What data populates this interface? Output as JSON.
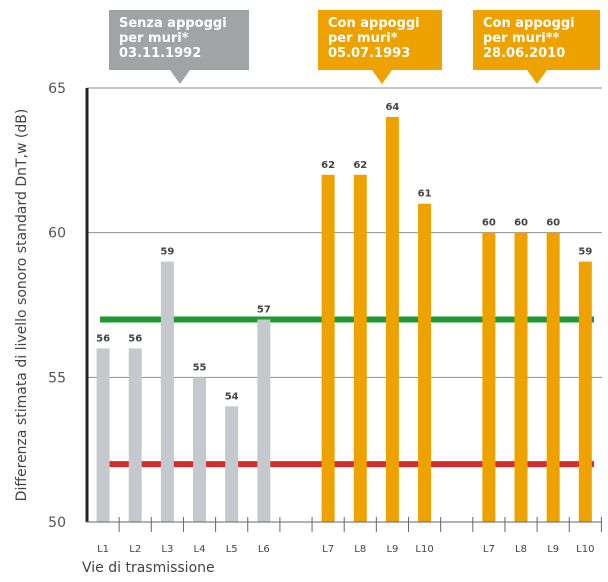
{
  "chart_data": {
    "type": "bar",
    "ylabel": "Differenza stimata di livello sonoro standard DnT,w (dB)",
    "xlabel": "Vie di trasmissione",
    "ylim": [
      50,
      65
    ],
    "yticks": [
      50,
      55,
      60,
      65
    ],
    "grid": true,
    "legend": "none",
    "groups": [
      {
        "name": "Senza appoggi per muri* 03.11.1992",
        "callout": [
          "Senza appoggi",
          "per muri*",
          "03.11.1992"
        ],
        "color": "#c3c9cc",
        "categories": [
          "L1",
          "L2",
          "L3",
          "L4",
          "L5",
          "L6"
        ],
        "values": [
          56,
          56,
          59,
          55,
          54,
          57
        ]
      },
      {
        "name": "Con appoggi per muri* 05.07.1993",
        "callout": [
          "Con appoggi",
          "per muri*",
          "05.07.1993"
        ],
        "color": "#eea200",
        "categories": [
          "L7",
          "L8",
          "L9",
          "L10"
        ],
        "values": [
          62,
          62,
          64,
          61
        ]
      },
      {
        "name": "Con appoggi per muri** 28.06.2010",
        "callout": [
          "Con appoggi",
          "per muri**",
          "28.06.2010"
        ],
        "color": "#eea200",
        "categories": [
          "L7",
          "L8",
          "L9",
          "L10"
        ],
        "values": [
          60,
          60,
          60,
          59
        ]
      }
    ],
    "reference_lines": [
      {
        "value": 57,
        "color": "#1e9a2e"
      },
      {
        "value": 52,
        "color": "#d82c2c"
      }
    ]
  },
  "callout_color": "#a0a4a7"
}
